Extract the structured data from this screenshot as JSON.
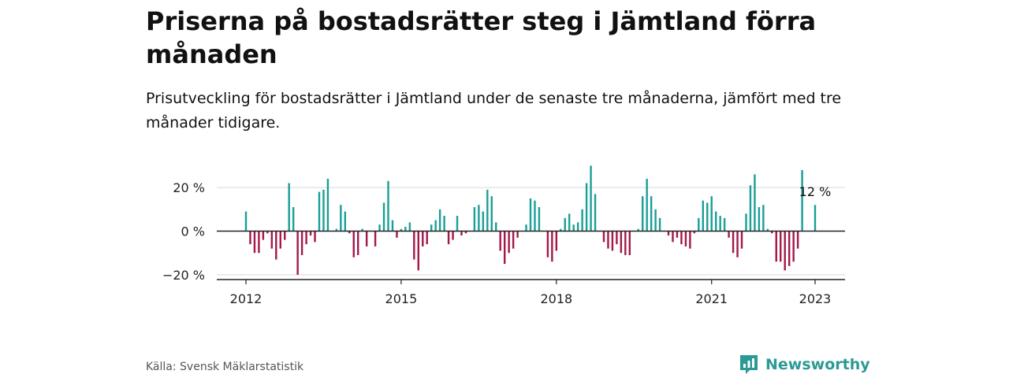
{
  "header": {
    "title": "Priserna på bostadsrätter steg i Jämtland förra månaden",
    "subtitle": "Prisutveckling för bostadsrätter i Jämtland under de senaste tre månaderna, jämfört med tre månader tidigare."
  },
  "footer": {
    "source": "Källa: Svensk Mäklarstatistik",
    "brand": "Newsworthy"
  },
  "colors": {
    "positive": "#1a9e96",
    "negative": "#a3174a",
    "grid": "#d9d9d9",
    "axis": "#222222",
    "brand": "#2b9a94"
  },
  "chart_data": {
    "type": "bar",
    "x_start": "2012-01",
    "x_end": "2023-01",
    "x_ticks": [
      "2012",
      "2015",
      "2018",
      "2021",
      "2023"
    ],
    "y_ticks": [
      {
        "value": 20,
        "label": "20 %"
      },
      {
        "value": 0,
        "label": "0 %"
      },
      {
        "value": -20,
        "label": "−20 %"
      }
    ],
    "ylim": [
      -22,
      30
    ],
    "grid": true,
    "annotation": {
      "x": "2023-01",
      "label": "12 %"
    },
    "x": [
      "2012-01",
      "2012-02",
      "2012-03",
      "2012-04",
      "2012-05",
      "2012-06",
      "2012-07",
      "2012-08",
      "2012-09",
      "2012-10",
      "2012-11",
      "2012-12",
      "2013-01",
      "2013-02",
      "2013-03",
      "2013-04",
      "2013-05",
      "2013-06",
      "2013-07",
      "2013-08",
      "2013-09",
      "2013-10",
      "2013-11",
      "2013-12",
      "2014-01",
      "2014-02",
      "2014-03",
      "2014-04",
      "2014-05",
      "2014-06",
      "2014-07",
      "2014-08",
      "2014-09",
      "2014-10",
      "2014-11",
      "2014-12",
      "2015-01",
      "2015-02",
      "2015-03",
      "2015-04",
      "2015-05",
      "2015-06",
      "2015-07",
      "2015-08",
      "2015-09",
      "2015-10",
      "2015-11",
      "2015-12",
      "2016-01",
      "2016-02",
      "2016-03",
      "2016-04",
      "2016-05",
      "2016-06",
      "2016-07",
      "2016-08",
      "2016-09",
      "2016-10",
      "2016-11",
      "2016-12",
      "2017-01",
      "2017-02",
      "2017-03",
      "2017-04",
      "2017-05",
      "2017-06",
      "2017-07",
      "2017-08",
      "2017-09",
      "2017-10",
      "2017-11",
      "2017-12",
      "2018-01",
      "2018-02",
      "2018-03",
      "2018-04",
      "2018-05",
      "2018-06",
      "2018-07",
      "2018-08",
      "2018-09",
      "2018-10",
      "2018-11",
      "2018-12",
      "2019-01",
      "2019-02",
      "2019-03",
      "2019-04",
      "2019-05",
      "2019-06",
      "2019-07",
      "2019-08",
      "2019-09",
      "2019-10",
      "2019-11",
      "2019-12",
      "2020-01",
      "2020-02",
      "2020-03",
      "2020-04",
      "2020-05",
      "2020-06",
      "2020-07",
      "2020-08",
      "2020-09",
      "2020-10",
      "2020-11",
      "2020-12",
      "2021-01",
      "2021-02",
      "2021-03",
      "2021-04",
      "2021-05",
      "2021-06",
      "2021-07",
      "2021-08",
      "2021-09",
      "2021-10",
      "2021-11",
      "2021-12",
      "2022-01",
      "2022-02",
      "2022-03",
      "2022-04",
      "2022-05",
      "2022-06",
      "2022-07",
      "2022-08",
      "2022-09",
      "2022-10",
      "2022-11",
      "2022-12",
      "2023-01"
    ],
    "values": [
      9,
      -6,
      -10,
      -10,
      -4,
      -1,
      -8,
      -13,
      -8,
      -4,
      22,
      11,
      -20,
      -11,
      -6,
      -2,
      -5,
      18,
      19,
      24,
      0,
      1,
      12,
      9,
      -1,
      -12,
      -11,
      1,
      -7,
      0,
      -7,
      3,
      13,
      23,
      5,
      -3,
      1,
      2,
      4,
      -13,
      -18,
      -7,
      -6,
      3,
      5,
      10,
      7,
      -6,
      -4,
      7,
      -2,
      -1,
      0,
      11,
      12,
      9,
      19,
      16,
      4,
      -9,
      -15,
      -10,
      -8,
      -3,
      0,
      3,
      15,
      14,
      11,
      0,
      -12,
      -14,
      -9,
      1,
      6,
      8,
      3,
      4,
      10,
      22,
      30,
      17,
      0,
      -5,
      -8,
      -9,
      -6,
      -10,
      -11,
      -11,
      0,
      1,
      16,
      24,
      16,
      10,
      6,
      0,
      -2,
      -5,
      -3,
      -6,
      -7,
      -8,
      -1,
      6,
      14,
      13,
      16,
      9,
      7,
      6,
      -3,
      -10,
      -12,
      -8,
      8,
      21,
      26,
      11,
      12,
      1,
      -1,
      -14,
      -14,
      -18,
      -16,
      -14,
      -8,
      28,
      0,
      0,
      12
    ]
  }
}
